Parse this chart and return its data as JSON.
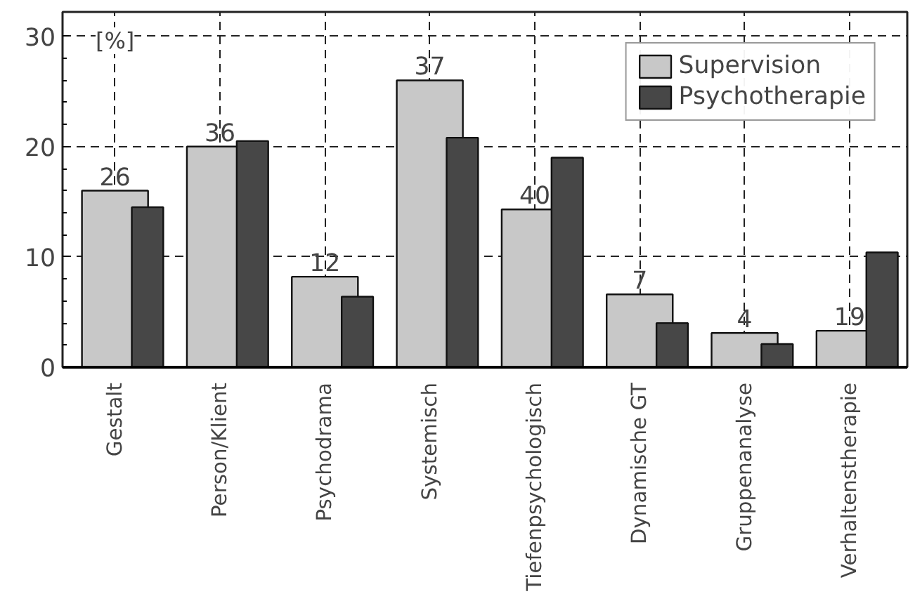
{
  "chart_data": {
    "type": "bar",
    "ylabel": "[%]",
    "categories": [
      "Gestalt",
      "Person/Klient",
      "Psychodrama",
      "Systemisch",
      "Tiefenpsychologisch",
      "Dynamische GT",
      "Gruppenanalyse",
      "Verhaltenstherapie"
    ],
    "series": [
      {
        "name": "Supervision",
        "color": "#c8c8c8",
        "values": [
          16,
          20,
          8.2,
          26,
          14.3,
          6.6,
          3.1,
          3.3
        ]
      },
      {
        "name": "Psychotherapie",
        "color": "#474747",
        "values": [
          14.5,
          20.5,
          6.4,
          20.8,
          19,
          4,
          2.1,
          10.4
        ]
      }
    ],
    "annotations": [
      {
        "text": "26",
        "x": "Gestalt",
        "y": 16
      },
      {
        "text": "36",
        "x": "Person/Klient",
        "y": 20
      },
      {
        "text": "12",
        "x": "Psychodrama",
        "y": 8.2
      },
      {
        "text": "37",
        "x": "Systemisch",
        "y": 26
      },
      {
        "text": "40",
        "x": "Tiefenpsychologisch",
        "y": 14.3
      },
      {
        "text": "7",
        "x": "Dynamische GT",
        "y": 6.6
      },
      {
        "text": "4",
        "x": "Gruppenanalyse",
        "y": 3.1
      },
      {
        "text": "19",
        "x": "Verhaltenstherapie",
        "y": 3.3
      }
    ],
    "ylim": [
      0,
      32.2
    ],
    "yticks": [
      0,
      10,
      20,
      30
    ],
    "grid": true,
    "legend": "top right"
  }
}
